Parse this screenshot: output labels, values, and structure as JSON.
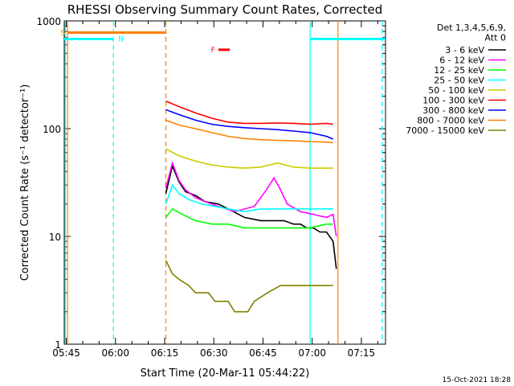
{
  "chart_data": {
    "type": "line",
    "title": "RHESSI Observing Summary Count Rates, Corrected",
    "xlabel": "Start Time (20-Mar-11 05:44:22)",
    "ylabel": "Corrected Count Rate (s⁻¹ detector⁻¹)",
    "yscale": "log",
    "ylim": [
      1,
      1000
    ],
    "xlim_minutes": [
      0,
      98
    ],
    "x_tick_minutes": [
      0.63,
      15.63,
      30.63,
      45.63,
      60.63,
      75.63,
      90.63
    ],
    "x_tick_labels": [
      "05:45",
      "06:00",
      "06:15",
      "06:30",
      "06:45",
      "07:00",
      "07:15"
    ],
    "y_ticks": [
      1,
      10,
      100,
      1000
    ],
    "y_tick_labels": [
      "1",
      "10",
      "100",
      "1000"
    ],
    "legend_header": [
      "Det 1,3,4,5,6,9,",
      "Att 0"
    ],
    "series": [
      {
        "name": "3 - 6 keV",
        "color": "#000000",
        "x": [
          31,
          33,
          35,
          37,
          40,
          43,
          47,
          50,
          55,
          60,
          64,
          67,
          70,
          72,
          74,
          76,
          78,
          80,
          82,
          83
        ],
        "y": [
          25,
          45,
          32,
          26,
          24,
          21,
          20,
          18,
          15,
          14,
          14,
          14,
          13,
          13,
          12,
          12,
          11,
          11,
          9,
          5
        ]
      },
      {
        "name": "6 - 12 keV",
        "color": "#ff00ff",
        "x": [
          31,
          33,
          35,
          37,
          40,
          43,
          47,
          52,
          58,
          62,
          64,
          66,
          68,
          72,
          76,
          80,
          82,
          83
        ],
        "y": [
          28,
          48,
          33,
          27,
          23,
          21,
          19,
          17,
          19,
          28,
          35,
          27,
          20,
          17,
          16,
          15,
          16,
          10
        ]
      },
      {
        "name": "12 - 25 keV",
        "color": "#00ff00",
        "x": [
          31,
          33,
          36,
          40,
          45,
          50,
          55,
          60,
          65,
          70,
          75,
          80,
          82
        ],
        "y": [
          15,
          18,
          16,
          14,
          13,
          13,
          12,
          12,
          12,
          12,
          12,
          13,
          13
        ]
      },
      {
        "name": "25 - 50 keV",
        "color": "#00ffff",
        "x": [
          31,
          33,
          35,
          38,
          42,
          46,
          50,
          55,
          60,
          65,
          70,
          75,
          80,
          82
        ],
        "y": [
          20,
          30,
          25,
          22,
          20,
          19,
          18,
          17,
          18,
          18,
          18,
          18,
          18,
          18
        ]
      },
      {
        "name": "50 - 100 keV",
        "color": "#cccc00",
        "x": [
          31,
          35,
          40,
          45,
          50,
          55,
          60,
          65,
          70,
          75,
          80,
          82
        ],
        "y": [
          65,
          56,
          50,
          46,
          44,
          43,
          44,
          48,
          44,
          43,
          43,
          43
        ]
      },
      {
        "name": "100 - 300 keV",
        "color": "#ff0000",
        "x": [
          31,
          35,
          40,
          45,
          50,
          55,
          60,
          65,
          70,
          75,
          80,
          82
        ],
        "y": [
          180,
          160,
          140,
          125,
          115,
          112,
          112,
          113,
          112,
          110,
          112,
          110
        ]
      },
      {
        "name": "300 - 800 keV",
        "color": "#0000ff",
        "x": [
          31,
          35,
          40,
          45,
          50,
          55,
          60,
          65,
          70,
          75,
          80,
          82
        ],
        "y": [
          150,
          135,
          120,
          110,
          105,
          102,
          100,
          98,
          95,
          92,
          85,
          80
        ]
      },
      {
        "name": "800 - 7000 keV",
        "color": "#ff8000",
        "x": [
          31,
          35,
          40,
          45,
          50,
          55,
          60,
          65,
          70,
          75,
          80,
          82
        ],
        "y": [
          120,
          108,
          100,
          92,
          85,
          81,
          79,
          78,
          77,
          76,
          75,
          74
        ]
      },
      {
        "name": "7000 - 15000 keV",
        "color": "#808000",
        "x": [
          31,
          33,
          35,
          38,
          40,
          44,
          46,
          50,
          52,
          56,
          58,
          62,
          66,
          70,
          74,
          78,
          82
        ],
        "y": [
          6,
          4.5,
          4,
          3.5,
          3,
          3,
          2.5,
          2.5,
          2,
          2,
          2.5,
          3,
          3.5,
          3.5,
          3.5,
          3.5,
          3.5
        ]
      }
    ],
    "status_bars": [
      {
        "label": "S",
        "color": "#ff8000",
        "x0": 1,
        "x1": 31,
        "y": 780
      },
      {
        "label": "N",
        "color": "#00ffff",
        "x0": 0,
        "x1": 15,
        "y": 680
      },
      {
        "label": "",
        "color": "#00ffff",
        "x0": 75,
        "x1": 98,
        "y": 680
      },
      {
        "label": "F",
        "color": "#ff0000",
        "x0": 47,
        "x1": 50.5,
        "y": 540
      }
    ],
    "vlines": [
      {
        "color": "#ff8000",
        "dash": false,
        "x": 1
      },
      {
        "color": "#ff8000",
        "dash": true,
        "x": 31
      },
      {
        "color": "#ff8000",
        "dash": false,
        "x": 83.5
      },
      {
        "color": "#00ffff",
        "dash": false,
        "x": 0.3
      },
      {
        "color": "#00ffff",
        "dash": true,
        "x": 15
      },
      {
        "color": "#00ffff",
        "dash": false,
        "x": 75
      },
      {
        "color": "#00ffff",
        "dash": true,
        "x": 97
      }
    ]
  },
  "footer": {
    "timestamp": "15-Oct-2021 18:28"
  }
}
